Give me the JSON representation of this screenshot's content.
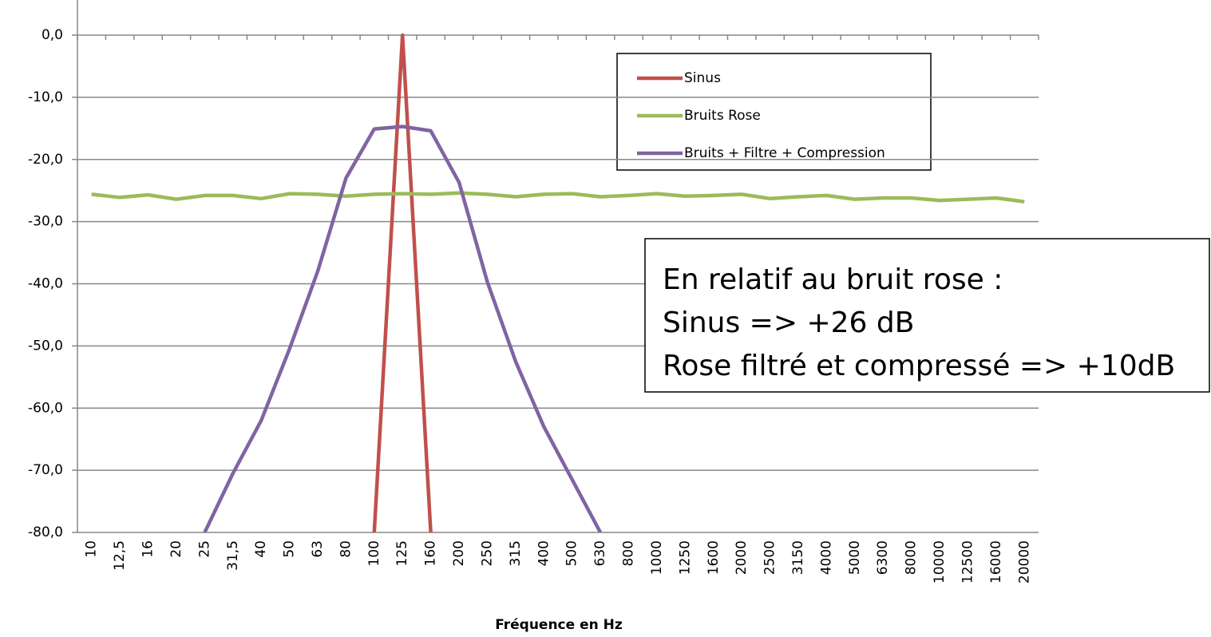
{
  "chart_data": {
    "type": "line",
    "x_label": "Fréquence en Hz",
    "categories": [
      "10",
      "12,5",
      "16",
      "20",
      "25",
      "31,5",
      "40",
      "50",
      "63",
      "80",
      "100",
      "125",
      "160",
      "200",
      "250",
      "315",
      "400",
      "500",
      "630",
      "800",
      "1000",
      "1250",
      "1600",
      "2000",
      "2500",
      "3150",
      "4000",
      "5000",
      "6300",
      "8000",
      "10000",
      "12500",
      "16000",
      "20000"
    ],
    "series": [
      {
        "name": "Sinus",
        "color": "#c0504d",
        "values": [
          null,
          null,
          null,
          null,
          null,
          null,
          null,
          null,
          null,
          null,
          -80,
          0,
          -80,
          null,
          null,
          null,
          null,
          null,
          null,
          null,
          null,
          null,
          null,
          null,
          null,
          null,
          null,
          null,
          null,
          null,
          null,
          null,
          null,
          null
        ]
      },
      {
        "name": "Bruits Rose",
        "color": "#9bbb59",
        "values": [
          -25.6,
          -26.1,
          -25.7,
          -26.4,
          -25.8,
          -25.8,
          -26.3,
          -25.5,
          -25.6,
          -25.9,
          -25.6,
          -25.5,
          -25.6,
          -25.4,
          -25.6,
          -26.0,
          -25.6,
          -25.5,
          -26.0,
          -25.8,
          -25.5,
          -25.9,
          -25.8,
          -25.6,
          -26.3,
          -26.0,
          -25.8,
          -26.4,
          -26.2,
          -26.2,
          -26.6,
          -26.4,
          -26.2,
          -26.8
        ]
      },
      {
        "name": "Bruits + Filtre + Compression",
        "color": "#8064a2",
        "values": [
          null,
          null,
          null,
          null,
          -80,
          -70.5,
          -62,
          -50.5,
          -38,
          -23,
          -15.1,
          -14.7,
          -15.4,
          -23.7,
          -39.7,
          -52.5,
          -63,
          -71.5,
          -80,
          null,
          null,
          null,
          null,
          null,
          null,
          null,
          null,
          null,
          null,
          null,
          null,
          null,
          null,
          null
        ]
      }
    ],
    "ylim": [
      -80,
      0
    ],
    "yticks": [
      {
        "value": -80,
        "label": "-80,0"
      },
      {
        "value": -70,
        "label": "-70,0"
      },
      {
        "value": -60,
        "label": "-60,0"
      },
      {
        "value": -50,
        "label": "-50,0"
      },
      {
        "value": -40,
        "label": "-40,0"
      },
      {
        "value": -30,
        "label": "-30,0"
      },
      {
        "value": -20,
        "label": "-20,0"
      },
      {
        "value": -10,
        "label": "-10,0"
      },
      {
        "value": 0,
        "label": "0,0"
      }
    ],
    "grid": true,
    "legend": "upper-right",
    "annotation": [
      "En relatif au bruit rose :",
      "Sinus => +26 dB",
      "Rose filtré et compressé => +10dB"
    ]
  }
}
